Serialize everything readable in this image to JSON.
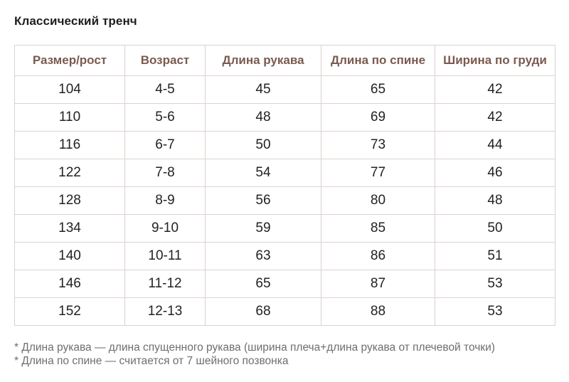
{
  "title": "Классический тренч",
  "table": {
    "headers": [
      "Размер/рост",
      "Возраст",
      "Длина рукава",
      "Длина по спине",
      "Ширина по груди"
    ],
    "rows": [
      [
        "104",
        "4-5",
        "45",
        "65",
        "42"
      ],
      [
        "110",
        "5-6",
        "48",
        "69",
        "42"
      ],
      [
        "116",
        "6-7",
        "50",
        "73",
        "44"
      ],
      [
        "122",
        "7-8",
        "54",
        "77",
        "46"
      ],
      [
        "128",
        "8-9",
        "56",
        "80",
        "48"
      ],
      [
        "134",
        "9-10",
        "59",
        "85",
        "50"
      ],
      [
        "140",
        "10-11",
        "63",
        "86",
        "51"
      ],
      [
        "146",
        "11-12",
        "65",
        "87",
        "53"
      ],
      [
        "152",
        "12-13",
        "68",
        "88",
        "53"
      ]
    ]
  },
  "notes": [
    "* Длина рукава — длина спущенного рукава (ширина плеча+длина рукава от плечевой точки)",
    "* Длина по спине — считается от 7 шейного позвонка"
  ],
  "colors": {
    "header_text": "#7a5a50",
    "border": "#dcd3cf",
    "note_text": "#6e6e6e"
  }
}
